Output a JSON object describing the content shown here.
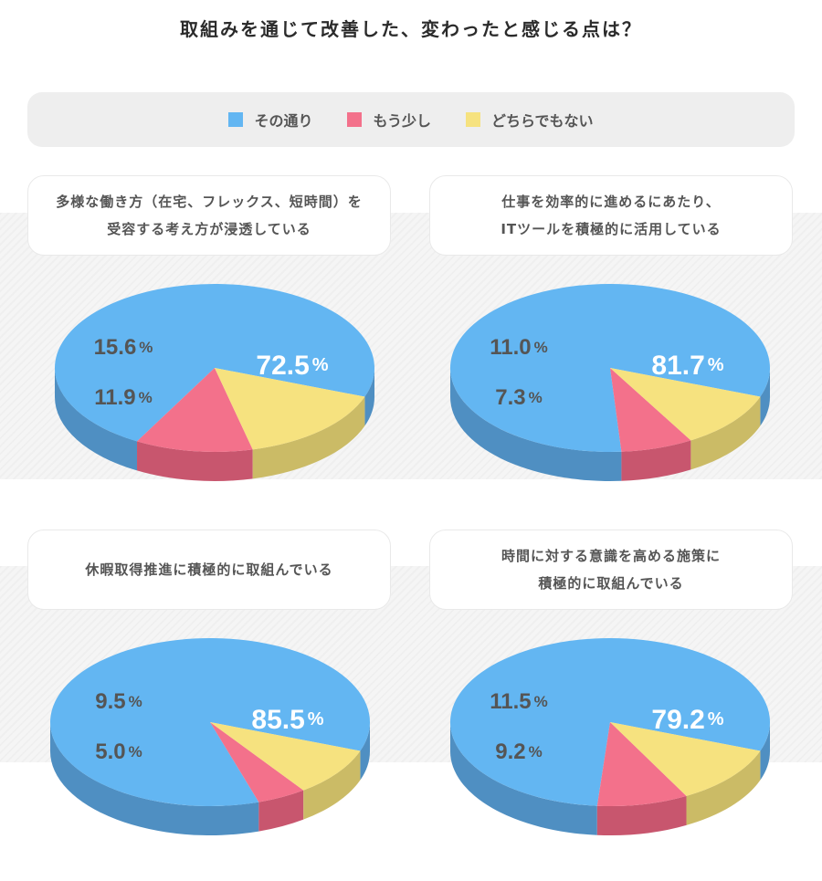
{
  "title": "取組みを通じて改善した、変わったと感じる点は？",
  "legend": [
    {
      "label": "その通り",
      "color": "#63b6f2"
    },
    {
      "label": "もう少し",
      "color": "#f3718b"
    },
    {
      "label": "どちらでもない",
      "color": "#f6e27f"
    }
  ],
  "colors": {
    "top": [
      "#63b6f2",
      "#f3718b",
      "#f6e27f"
    ],
    "side": [
      "#4f8fc2",
      "#c8566e",
      "#cbbb66"
    ]
  },
  "questions": [
    {
      "text": "多様な働き方（在宅、フレックス、短時間）を\n受容する考え方が浸透している"
    },
    {
      "text": "仕事を効率的に進めるにあたり、\nITツールを積極的に活用している"
    },
    {
      "text": "休暇取得推進に積極的に取組んでいる"
    },
    {
      "text": "時間に対する意識を高める施策に\n積極的に取組んでいる"
    }
  ],
  "chart_data": [
    {
      "type": "pie",
      "title": "多様な働き方（在宅、フレックス、短時間）を受容する考え方が浸透している",
      "labels": [
        "その通り",
        "もう少し",
        "どちらでもない"
      ],
      "values": [
        72.5,
        11.9,
        15.6
      ],
      "value_labels": [
        "72.5",
        "11.9",
        "15.6"
      ],
      "unit": "%"
    },
    {
      "type": "pie",
      "title": "仕事を効率的に進めるにあたり、ITツールを積極的に活用している",
      "labels": [
        "その通り",
        "もう少し",
        "どちらでもない"
      ],
      "values": [
        81.7,
        7.3,
        11.0
      ],
      "value_labels": [
        "81.7",
        "7.3",
        "11.0"
      ],
      "unit": "%"
    },
    {
      "type": "pie",
      "title": "休暇取得推進に積極的に取組んでいる",
      "labels": [
        "その通り",
        "もう少し",
        "どちらでもない"
      ],
      "values": [
        85.5,
        5.0,
        9.5
      ],
      "value_labels": [
        "85.5",
        "5.0",
        "9.5"
      ],
      "unit": "%"
    },
    {
      "type": "pie",
      "title": "時間に対する意識を高める施策に積極的に取組んでいる",
      "labels": [
        "その通り",
        "もう少し",
        "どちらでもない"
      ],
      "values": [
        79.2,
        9.2,
        11.5
      ],
      "value_labels": [
        "79.2",
        "9.2",
        "11.5"
      ],
      "unit": "%"
    }
  ]
}
